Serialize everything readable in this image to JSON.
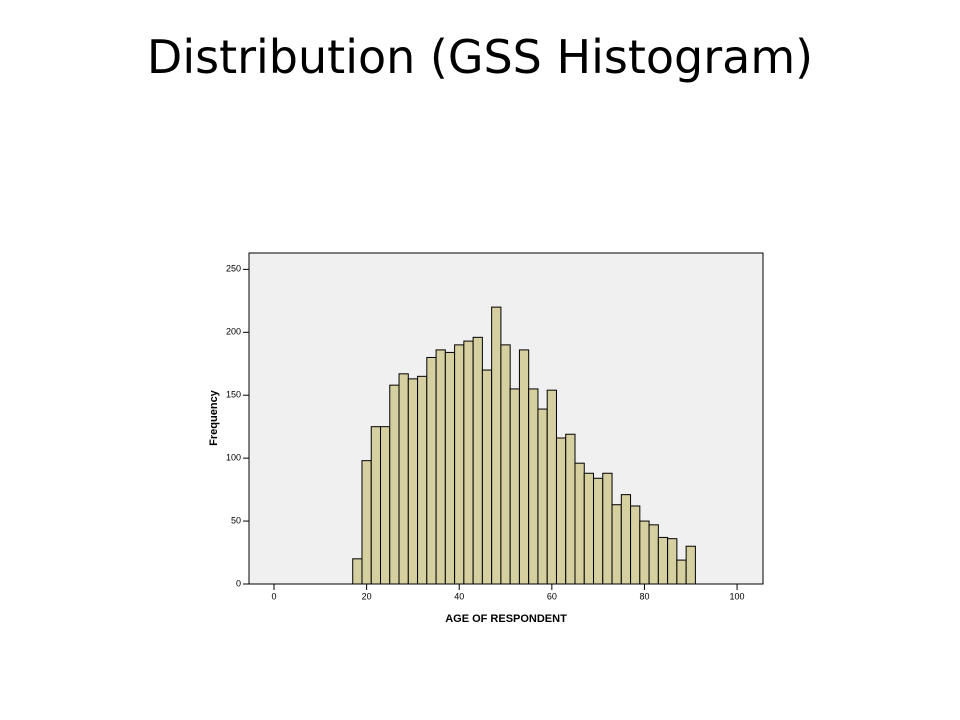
{
  "chart_data": {
    "type": "histogram",
    "title": "Distribution (GSS Histogram)",
    "x_label": "AGE OF RESPONDENT",
    "y_label": "Frequency",
    "bins": [
      17,
      19,
      21,
      23,
      25,
      27,
      29,
      31,
      33,
      35,
      37,
      39,
      41,
      43,
      45,
      47,
      49,
      51,
      53,
      55,
      57,
      59,
      61,
      63,
      65,
      67,
      69,
      71,
      73,
      75,
      77,
      79,
      81,
      83,
      85,
      87,
      89,
      91
    ],
    "values": [
      20,
      98,
      125,
      125,
      158,
      167,
      163,
      165,
      180,
      186,
      184,
      190,
      193,
      196,
      170,
      220,
      190,
      155,
      186,
      155,
      139,
      154,
      116,
      119,
      96,
      88,
      84,
      88,
      63,
      71,
      62,
      50,
      47,
      37,
      36,
      19,
      30
    ],
    "color": "#d6d0a0",
    "xlim": [
      -5.4,
      105.6
    ],
    "xticks": [
      0,
      20,
      40,
      60,
      80,
      100
    ],
    "ylim": [
      0,
      263
    ],
    "yticks": [
      0,
      50,
      100,
      150,
      200,
      250
    ]
  }
}
